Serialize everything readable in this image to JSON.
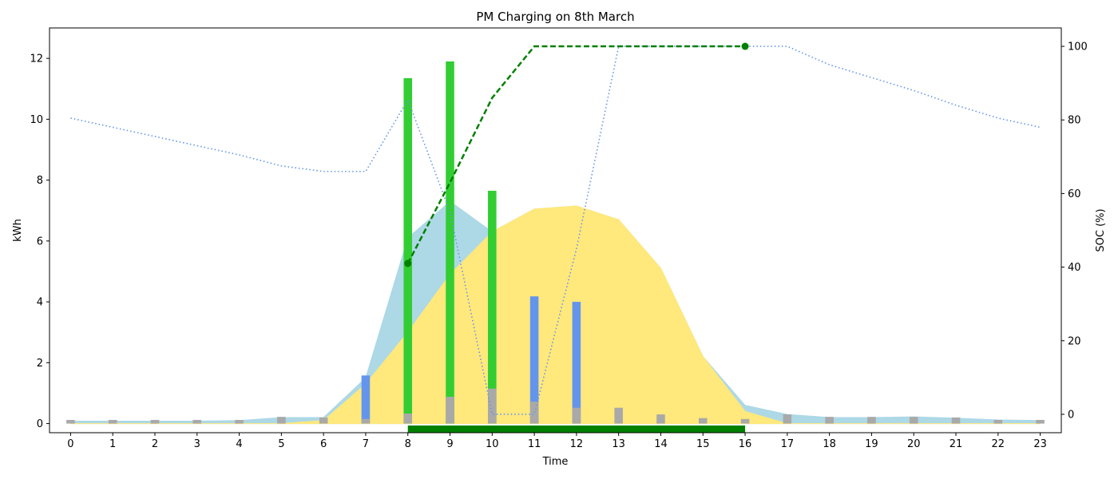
{
  "chart_data": {
    "type": "bar",
    "title": "PM Charging on 8th March",
    "xlabel": "Time",
    "ylabel": "kWh",
    "y2label": "SOC (%)",
    "x": [
      0,
      1,
      2,
      3,
      4,
      5,
      6,
      7,
      8,
      9,
      10,
      11,
      12,
      13,
      14,
      15,
      16,
      17,
      18,
      19,
      20,
      21,
      22,
      23
    ],
    "xlim": [
      -0.5,
      23.5
    ],
    "ylim": [
      -0.3,
      13.0
    ],
    "y2lim": [
      -5,
      105
    ],
    "yticks": [
      0,
      2,
      4,
      6,
      8,
      10,
      12
    ],
    "y2ticks": [
      0,
      20,
      40,
      60,
      80,
      100
    ],
    "grid": false,
    "legend": "none",
    "series": [
      {
        "type": "area",
        "color": "#add8e6",
        "values": [
          0.08,
          0.08,
          0.08,
          0.08,
          0.1,
          0.2,
          0.2,
          1.5,
          6.1,
          7.3,
          6.3,
          7.05,
          7.15,
          6.7,
          5.1,
          2.2,
          0.6,
          0.3,
          0.2,
          0.2,
          0.22,
          0.18,
          0.12,
          0.1
        ]
      },
      {
        "type": "area",
        "color": "#ffe87c",
        "values": [
          0,
          0,
          0,
          0,
          0,
          0,
          0.1,
          1.3,
          3.0,
          4.9,
          6.3,
          7.05,
          7.15,
          6.7,
          5.1,
          2.2,
          0.4,
          0,
          0,
          0,
          0,
          0,
          0,
          0
        ]
      },
      {
        "type": "bar",
        "color": "#32cd32",
        "values": [
          0,
          0,
          0,
          0,
          0,
          0,
          0,
          0,
          11.35,
          11.9,
          7.65,
          0,
          0,
          0,
          0,
          0,
          0,
          0,
          0,
          0,
          0,
          0,
          0,
          0
        ]
      },
      {
        "type": "bar",
        "color": "#6495ed",
        "values": [
          0,
          0,
          0,
          0,
          0,
          0,
          0,
          1.58,
          0,
          0,
          0,
          4.18,
          4.0,
          0,
          0,
          0,
          0,
          0,
          0,
          0,
          0,
          0,
          0,
          0
        ]
      },
      {
        "type": "bar",
        "color": "#a9a9a9",
        "values": [
          0.12,
          0.12,
          0.12,
          0.12,
          0.12,
          0.22,
          0.2,
          0.15,
          0.33,
          0.88,
          1.15,
          0.72,
          0.52,
          0.52,
          0.3,
          0.18,
          0.15,
          0.3,
          0.22,
          0.22,
          0.22,
          0.2,
          0.12,
          0.12
        ]
      },
      {
        "type": "line",
        "axis": "right",
        "color": "#6495ed",
        "style": "dotted",
        "values": [
          80.5,
          78,
          75.5,
          73,
          70.5,
          67.5,
          66,
          66,
          85.5,
          55,
          0,
          0,
          45,
          100,
          100,
          100,
          100,
          100,
          95,
          91.5,
          88,
          84,
          80.5,
          78
        ]
      },
      {
        "type": "line",
        "axis": "right",
        "color": "#008000",
        "style": "dashed",
        "values": [
          null,
          null,
          null,
          null,
          null,
          null,
          null,
          null,
          41,
          63,
          86,
          100,
          100,
          100,
          100,
          100,
          100,
          null,
          null,
          null,
          null,
          null,
          null,
          null
        ]
      }
    ],
    "markers": [
      {
        "x": 8,
        "y2": 41,
        "color": "#008000"
      },
      {
        "x": 16,
        "y2": 100,
        "color": "#008000"
      }
    ],
    "window_bar": {
      "start": 8,
      "end": 16,
      "color": "#008000"
    }
  }
}
